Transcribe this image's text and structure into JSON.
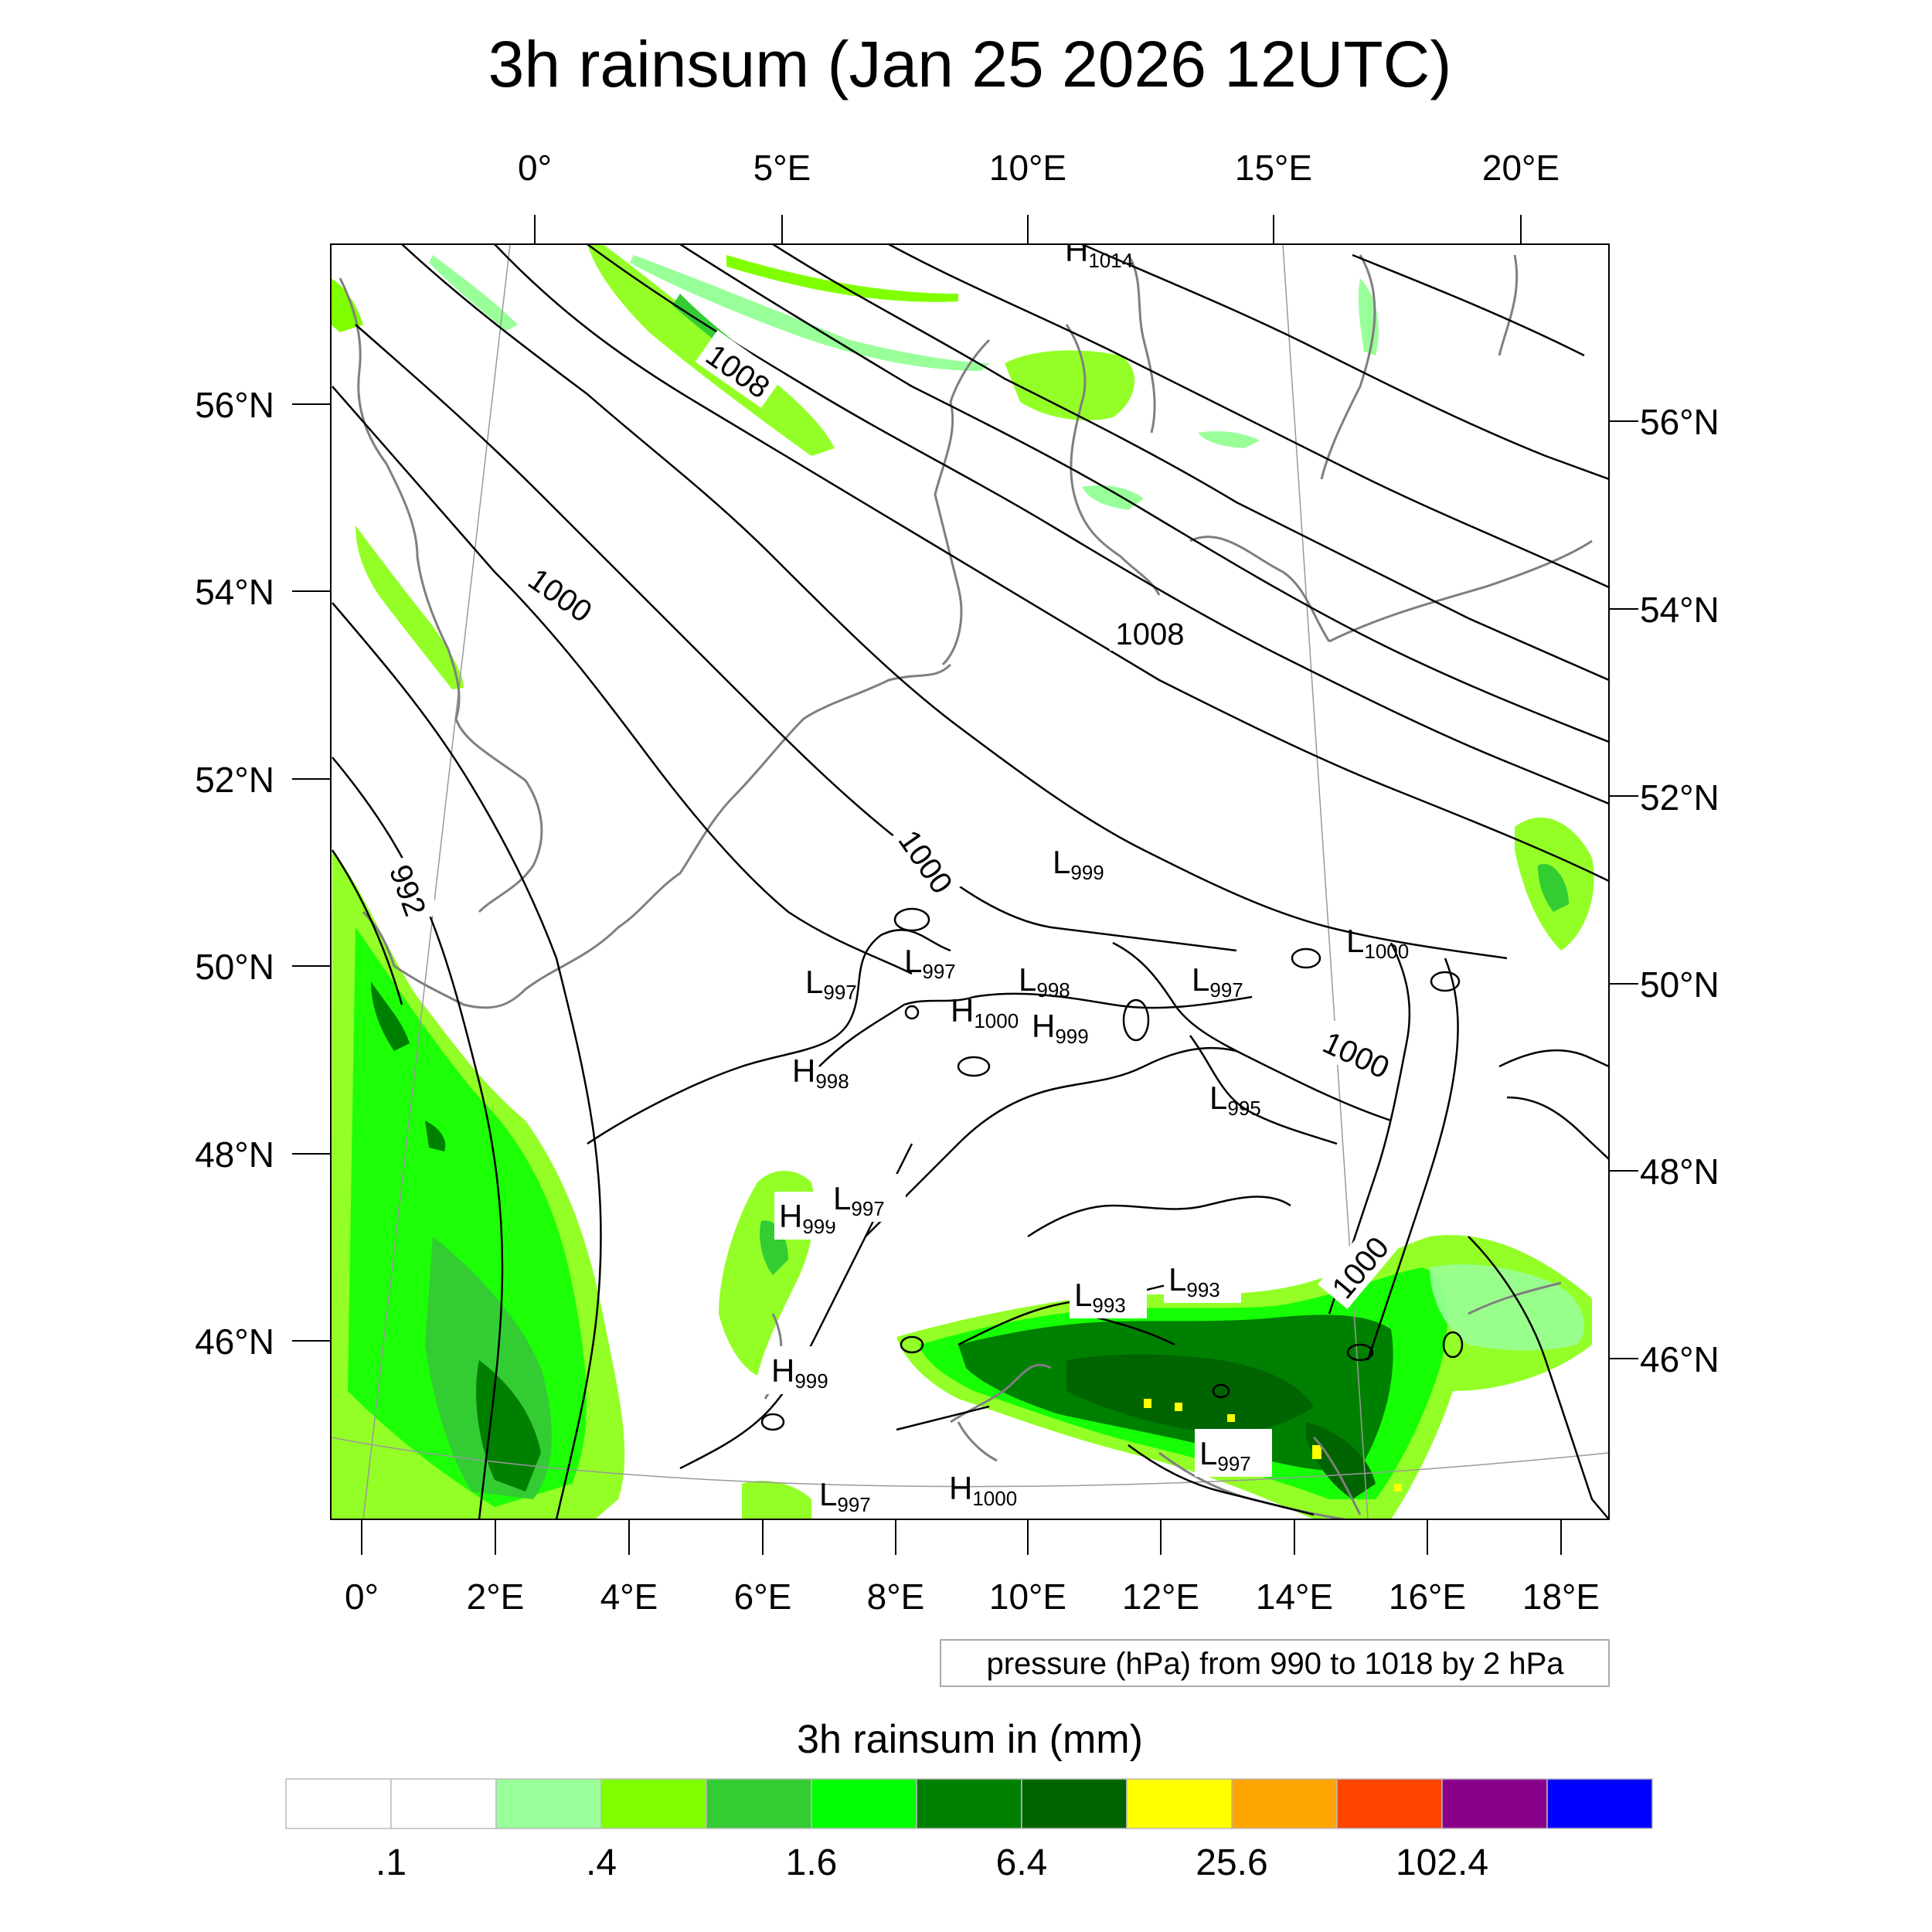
{
  "title": "3h rainsum (Jan 25 2026 12UTC)",
  "top_lon_labels": [
    "0°",
    "5°E",
    "10°E",
    "15°E",
    "20°E"
  ],
  "left_lat_labels": [
    "56°N",
    "54°N",
    "52°N",
    "50°N",
    "48°N",
    "46°N"
  ],
  "right_lat_labels": [
    "56°N",
    "54°N",
    "52°N",
    "50°N",
    "48°N",
    "46°N"
  ],
  "bottom_lon_labels": [
    "0°",
    "2°E",
    "4°E",
    "6°E",
    "8°E",
    "10°E",
    "12°E",
    "14°E",
    "16°E",
    "18°E"
  ],
  "contour_info": "pressure (hPa) from 990 to 1018 by 2 hPa",
  "colorbar": {
    "title": "3h rainsum in (mm)",
    "colors": [
      "#ffffff",
      "#ffffff",
      "#99ff99",
      "#80ff00",
      "#33cc33",
      "#00ff00",
      "#008000",
      "#006400",
      "#ffff00",
      "#ffa500",
      "#ff4500",
      "#8b008b",
      "#0000ff"
    ],
    "labels": [
      ".1",
      ".4",
      "1.6",
      "6.4",
      "25.6",
      "102.4"
    ]
  },
  "isobar_labels": [
    "1008",
    "1000",
    "1008",
    "1000",
    "992",
    "1000",
    "1000"
  ],
  "pressure_centers": [
    {
      "type": "H",
      "value": "1014"
    },
    {
      "type": "L",
      "value": "999"
    },
    {
      "type": "L",
      "value": "1000"
    },
    {
      "type": "L",
      "value": "997"
    },
    {
      "type": "L",
      "value": "997"
    },
    {
      "type": "L",
      "value": "998"
    },
    {
      "type": "L",
      "value": "997"
    },
    {
      "type": "H",
      "value": "1000"
    },
    {
      "type": "H",
      "value": "999"
    },
    {
      "type": "H",
      "value": "998"
    },
    {
      "type": "L",
      "value": "995"
    },
    {
      "type": "H",
      "value": "999"
    },
    {
      "type": "L",
      "value": "997"
    },
    {
      "type": "L",
      "value": "993"
    },
    {
      "type": "L",
      "value": "993"
    },
    {
      "type": "H",
      "value": "999"
    },
    {
      "type": "L",
      "value": "997"
    },
    {
      "type": "L",
      "value": "997"
    },
    {
      "type": "H",
      "value": "1000"
    }
  ]
}
